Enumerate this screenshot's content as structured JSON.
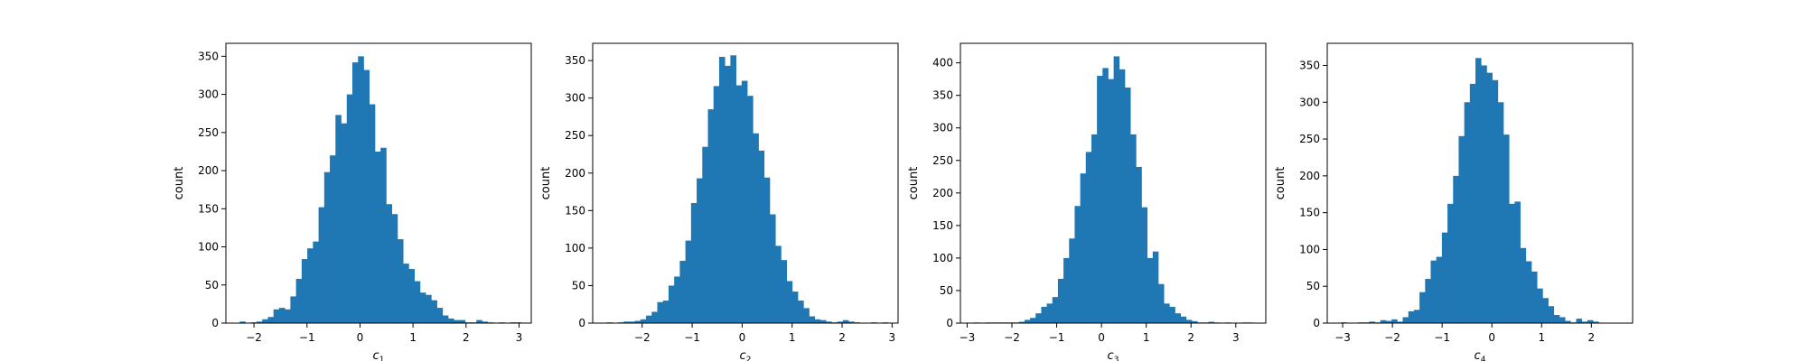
{
  "figure": {
    "background": "#ffffff",
    "bar_color": "#1f77b4"
  },
  "chart_data": [
    {
      "type": "bar",
      "subtype": "histogram",
      "ylabel": "count",
      "xlabel_main": "c",
      "xlabel_sub": "1",
      "xlim": [
        -2.53,
        3.23
      ],
      "ylim": [
        0,
        367
      ],
      "xticks": [
        -2,
        -1,
        0,
        1,
        2,
        3
      ],
      "xtick_labels": [
        "−2",
        "−1",
        "0",
        "1",
        "2",
        "3"
      ],
      "yticks": [
        0,
        50,
        100,
        150,
        200,
        250,
        300,
        350
      ],
      "ytick_labels": [
        "0",
        "50",
        "100",
        "150",
        "200",
        "250",
        "300",
        "350"
      ],
      "bin_start": -2.27,
      "bin_width": 0.1063,
      "values": [
        2,
        0,
        1,
        2,
        5,
        8,
        18,
        20,
        18,
        35,
        58,
        84,
        98,
        107,
        152,
        198,
        220,
        273,
        262,
        300,
        342,
        350,
        332,
        287,
        225,
        230,
        156,
        143,
        110,
        78,
        71,
        55,
        40,
        37,
        30,
        20,
        10,
        6,
        4,
        4,
        1,
        1,
        4,
        2,
        1,
        0,
        1,
        0,
        1,
        1
      ]
    },
    {
      "type": "bar",
      "subtype": "histogram",
      "ylabel": "count",
      "xlabel_main": "c",
      "xlabel_sub": "2",
      "xlim": [
        -2.99,
        3.12
      ],
      "ylim": [
        0,
        373
      ],
      "xticks": [
        -2,
        -1,
        0,
        1,
        2,
        3
      ],
      "xtick_labels": [
        "−2",
        "−1",
        "0",
        "1",
        "2",
        "3"
      ],
      "yticks": [
        0,
        50,
        100,
        150,
        200,
        250,
        300,
        350
      ],
      "ytick_labels": [
        "0",
        "50",
        "100",
        "150",
        "200",
        "250",
        "300",
        "350"
      ],
      "bin_start": -2.71,
      "bin_width": 0.1125,
      "values": [
        1,
        0,
        1,
        2,
        2,
        3,
        5,
        10,
        15,
        28,
        30,
        50,
        62,
        83,
        110,
        160,
        193,
        235,
        285,
        316,
        355,
        343,
        357,
        317,
        323,
        303,
        253,
        230,
        194,
        145,
        103,
        84,
        56,
        42,
        30,
        20,
        9,
        5,
        4,
        2,
        1,
        2,
        4,
        2,
        1,
        0,
        0,
        1,
        0,
        1
      ]
    },
    {
      "type": "bar",
      "subtype": "histogram",
      "ylabel": "count",
      "xlabel_main": "c",
      "xlabel_sub": "3",
      "xlim": [
        -3.15,
        3.67
      ],
      "ylim": [
        0,
        430
      ],
      "xticks": [
        -3,
        -2,
        -1,
        0,
        1,
        2,
        3
      ],
      "xtick_labels": [
        "−3",
        "−2",
        "−1",
        "0",
        "1",
        "2",
        "3"
      ],
      "yticks": [
        0,
        50,
        100,
        150,
        200,
        250,
        300,
        350,
        400
      ],
      "ytick_labels": [
        "0",
        "50",
        "100",
        "150",
        "200",
        "250",
        "300",
        "350",
        "400"
      ],
      "bin_start": -2.84,
      "bin_width": 0.1245,
      "values": [
        1,
        0,
        1,
        1,
        1,
        1,
        1,
        1,
        2,
        5,
        8,
        15,
        25,
        30,
        40,
        68,
        100,
        130,
        180,
        230,
        263,
        290,
        380,
        392,
        375,
        410,
        390,
        362,
        290,
        240,
        178,
        100,
        110,
        60,
        30,
        25,
        15,
        10,
        5,
        3,
        1,
        1,
        2,
        1,
        0,
        1,
        0,
        0,
        1,
        1
      ]
    },
    {
      "type": "bar",
      "subtype": "histogram",
      "ylabel": "count",
      "xlabel_main": "c",
      "xlabel_sub": "4",
      "xlim": [
        -3.31,
        2.83
      ],
      "ylim": [
        0,
        380
      ],
      "xticks": [
        -3,
        -2,
        -1,
        0,
        1,
        2
      ],
      "xtick_labels": [
        "−3",
        "−2",
        "−1",
        "0",
        "1",
        "2"
      ],
      "yticks": [
        0,
        50,
        100,
        150,
        200,
        250,
        300,
        350
      ],
      "ytick_labels": [
        "0",
        "50",
        "100",
        "150",
        "200",
        "250",
        "300",
        "350"
      ],
      "bin_start": -3.03,
      "bin_width": 0.1125,
      "values": [
        1,
        0,
        0,
        1,
        1,
        2,
        1,
        4,
        3,
        5,
        2,
        8,
        16,
        18,
        42,
        60,
        85,
        90,
        123,
        162,
        200,
        254,
        300,
        325,
        360,
        350,
        340,
        330,
        300,
        256,
        162,
        165,
        102,
        84,
        70,
        47,
        34,
        23,
        11,
        8,
        3,
        1,
        6,
        2,
        4,
        2,
        0,
        0,
        0,
        0
      ]
    }
  ]
}
